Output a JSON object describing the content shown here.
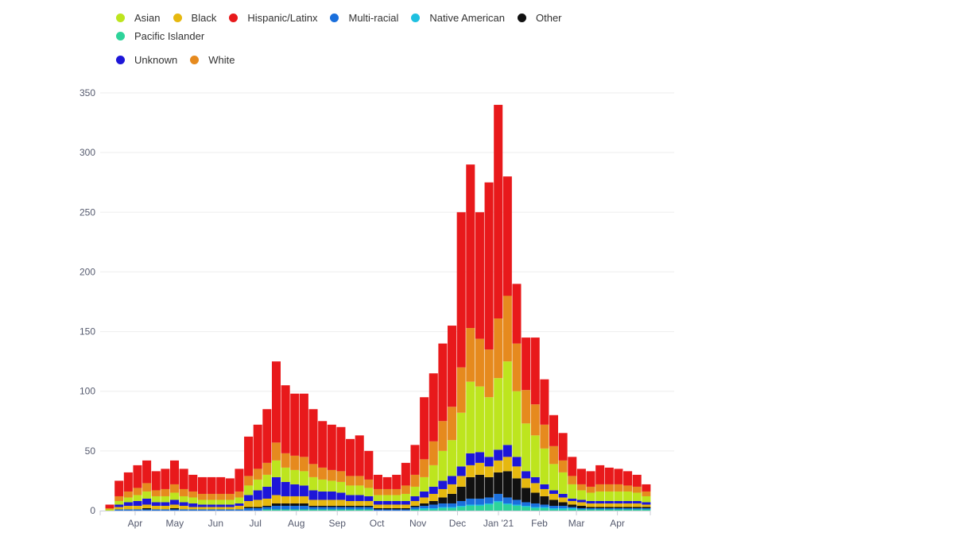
{
  "chart_data": {
    "type": "bar",
    "stacked": true,
    "title": "",
    "xlabel": "",
    "ylabel": "",
    "ylim": [
      0,
      370
    ],
    "grid": true,
    "legend_position": "top-left",
    "x_ticks": [
      {
        "label": "Apr",
        "day": 17
      },
      {
        "label": "May",
        "day": 47
      },
      {
        "label": "Jun",
        "day": 78
      },
      {
        "label": "Jul",
        "day": 108
      },
      {
        "label": "Aug",
        "day": 139
      },
      {
        "label": "Sep",
        "day": 170
      },
      {
        "label": "Oct",
        "day": 200
      },
      {
        "label": "Nov",
        "day": 231
      },
      {
        "label": "Dec",
        "day": 261
      },
      {
        "label": "Jan '21",
        "day": 292
      },
      {
        "label": "Feb",
        "day": 323
      },
      {
        "label": "Mar",
        "day": 351
      },
      {
        "label": "Apr",
        "day": 382
      }
    ],
    "y_ticks": [
      0,
      50,
      100,
      150,
      200,
      250,
      300,
      350
    ],
    "x_unit": "week index from mid-March 2020 (approximate weekly values)",
    "series": [
      {
        "name": "Pacific Islander",
        "color": "#2ed39a",
        "values": [
          0,
          0,
          0,
          0,
          0,
          0,
          0,
          0,
          0,
          0,
          0,
          0,
          0,
          0,
          0,
          0,
          0,
          1,
          1,
          1,
          1,
          1,
          1,
          1,
          1,
          1,
          1,
          1,
          1,
          0,
          0,
          0,
          0,
          1,
          1,
          1,
          2,
          2,
          3,
          4,
          4,
          5,
          7,
          5,
          4,
          3,
          2,
          2,
          1,
          1,
          1,
          1,
          1,
          1,
          1,
          1,
          1,
          1,
          1
        ]
      },
      {
        "name": "Native American",
        "color": "#1fc0e0",
        "values": [
          0,
          0,
          0,
          0,
          0,
          0,
          0,
          0,
          0,
          0,
          0,
          0,
          0,
          0,
          0,
          0,
          0,
          0,
          0,
          0,
          0,
          0,
          0,
          0,
          0,
          0,
          0,
          0,
          0,
          0,
          0,
          0,
          0,
          0,
          1,
          1,
          1,
          1,
          1,
          1,
          1,
          1,
          1,
          1,
          1,
          1,
          1,
          1,
          1,
          1,
          1,
          0,
          0,
          0,
          0,
          0,
          0,
          0,
          0
        ]
      },
      {
        "name": "Multi-racial",
        "color": "#1a6fdc",
        "values": [
          0,
          1,
          1,
          1,
          1,
          1,
          1,
          1,
          1,
          1,
          1,
          1,
          1,
          1,
          1,
          2,
          2,
          2,
          3,
          3,
          3,
          3,
          2,
          2,
          2,
          2,
          2,
          2,
          2,
          1,
          1,
          1,
          1,
          2,
          2,
          3,
          3,
          3,
          4,
          5,
          5,
          5,
          6,
          5,
          4,
          3,
          3,
          2,
          2,
          2,
          1,
          1,
          1,
          1,
          1,
          1,
          1,
          1,
          1
        ]
      },
      {
        "name": "Other",
        "color": "#111111",
        "values": [
          0,
          0,
          0,
          0,
          1,
          0,
          0,
          1,
          0,
          0,
          0,
          0,
          0,
          0,
          0,
          1,
          1,
          1,
          2,
          2,
          2,
          2,
          1,
          1,
          1,
          1,
          1,
          1,
          1,
          1,
          1,
          1,
          1,
          1,
          2,
          3,
          5,
          8,
          12,
          18,
          20,
          17,
          18,
          22,
          18,
          12,
          9,
          7,
          5,
          3,
          2,
          2,
          1,
          1,
          1,
          1,
          1,
          1,
          1
        ]
      },
      {
        "name": "Black",
        "color": "#e6b80f",
        "values": [
          0,
          2,
          3,
          3,
          3,
          3,
          3,
          3,
          3,
          2,
          2,
          2,
          2,
          2,
          3,
          5,
          6,
          6,
          7,
          6,
          6,
          6,
          5,
          5,
          5,
          5,
          4,
          4,
          4,
          3,
          3,
          3,
          3,
          4,
          5,
          6,
          7,
          8,
          9,
          10,
          10,
          9,
          10,
          12,
          10,
          8,
          8,
          6,
          5,
          4,
          3,
          3,
          3,
          3,
          3,
          3,
          3,
          3,
          2
        ]
      },
      {
        "name": "Unknown",
        "color": "#1d16d8",
        "values": [
          0,
          2,
          3,
          4,
          5,
          3,
          3,
          4,
          3,
          3,
          2,
          2,
          2,
          2,
          2,
          5,
          8,
          10,
          15,
          12,
          10,
          9,
          8,
          7,
          7,
          6,
          5,
          5,
          4,
          3,
          3,
          3,
          3,
          4,
          5,
          6,
          7,
          7,
          8,
          10,
          9,
          8,
          9,
          10,
          8,
          6,
          5,
          4,
          3,
          3,
          2,
          2,
          2,
          2,
          2,
          2,
          2,
          2,
          2
        ]
      },
      {
        "name": "Asian",
        "color": "#bde51e",
        "values": [
          1,
          3,
          4,
          5,
          6,
          5,
          5,
          6,
          5,
          5,
          4,
          4,
          4,
          4,
          5,
          8,
          9,
          10,
          14,
          12,
          12,
          12,
          11,
          10,
          9,
          9,
          8,
          8,
          7,
          5,
          5,
          5,
          6,
          8,
          12,
          18,
          25,
          30,
          45,
          60,
          55,
          50,
          60,
          70,
          55,
          40,
          35,
          30,
          22,
          18,
          12,
          8,
          7,
          8,
          8,
          8,
          8,
          7,
          5
        ]
      },
      {
        "name": "White",
        "color": "#e68a1e",
        "values": [
          1,
          4,
          5,
          6,
          7,
          5,
          6,
          7,
          6,
          5,
          5,
          5,
          5,
          5,
          5,
          8,
          9,
          10,
          15,
          12,
          12,
          12,
          11,
          10,
          9,
          9,
          8,
          8,
          7,
          5,
          5,
          5,
          7,
          10,
          15,
          20,
          25,
          28,
          38,
          45,
          40,
          40,
          50,
          55,
          40,
          28,
          26,
          20,
          15,
          10,
          7,
          5,
          5,
          6,
          6,
          6,
          5,
          5,
          4
        ]
      },
      {
        "name": "Hispanic/Latinx",
        "color": "#e8191b",
        "values": [
          3,
          13,
          16,
          19,
          19,
          16,
          17,
          20,
          17,
          14,
          14,
          14,
          14,
          13,
          19,
          33,
          37,
          45,
          68,
          57,
          52,
          53,
          46,
          39,
          38,
          37,
          31,
          34,
          24,
          12,
          10,
          12,
          19,
          25,
          52,
          57,
          65,
          68,
          130,
          137,
          106,
          140,
          179,
          100,
          50,
          44,
          56,
          38,
          26,
          23,
          16,
          13,
          13,
          16,
          14,
          13,
          12,
          10,
          6
        ]
      }
    ],
    "legend": [
      {
        "name": "Asian",
        "color": "#bde51e"
      },
      {
        "name": "Black",
        "color": "#e6b80f"
      },
      {
        "name": "Hispanic/Latinx",
        "color": "#e8191b"
      },
      {
        "name": "Multi-racial",
        "color": "#1a6fdc"
      },
      {
        "name": "Native American",
        "color": "#1fc0e0"
      },
      {
        "name": "Other",
        "color": "#111111"
      },
      {
        "name": "Pacific Islander",
        "color": "#2ed39a"
      },
      {
        "name": "Unknown",
        "color": "#1d16d8"
      },
      {
        "name": "White",
        "color": "#e68a1e"
      }
    ]
  }
}
